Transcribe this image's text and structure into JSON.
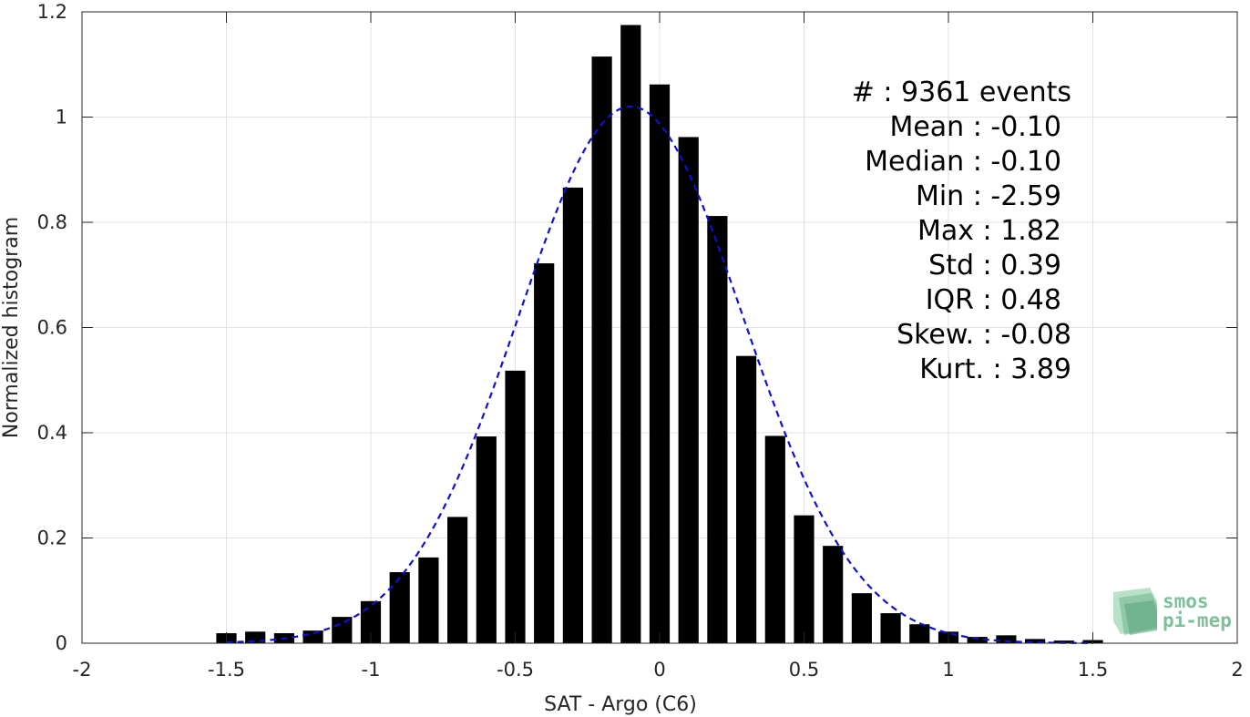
{
  "chart_data": {
    "type": "bar",
    "xlabel": "SAT - Argo (C6)",
    "ylabel": "Normalized histogram",
    "xlim": [
      -2,
      2
    ],
    "ylim": [
      0,
      1.2
    ],
    "xticks": [
      "-2",
      "-1.5",
      "-1",
      "-0.5",
      "0",
      "0.5",
      "1",
      "1.5",
      "2"
    ],
    "yticks": [
      "0",
      "0.2",
      "0.4",
      "0.6",
      "0.8",
      "1",
      "1.2"
    ],
    "grid": true,
    "bar_color": "#000000",
    "bins": [
      {
        "x": -1.5,
        "y": 0.019
      },
      {
        "x": -1.4,
        "y": 0.022
      },
      {
        "x": -1.3,
        "y": 0.019
      },
      {
        "x": -1.2,
        "y": 0.024
      },
      {
        "x": -1.1,
        "y": 0.05
      },
      {
        "x": -1.0,
        "y": 0.08
      },
      {
        "x": -0.9,
        "y": 0.135
      },
      {
        "x": -0.8,
        "y": 0.163
      },
      {
        "x": -0.7,
        "y": 0.24
      },
      {
        "x": -0.6,
        "y": 0.393
      },
      {
        "x": -0.5,
        "y": 0.518
      },
      {
        "x": -0.4,
        "y": 0.722
      },
      {
        "x": -0.3,
        "y": 0.866
      },
      {
        "x": -0.2,
        "y": 1.115
      },
      {
        "x": -0.1,
        "y": 1.175
      },
      {
        "x": 0.0,
        "y": 1.062
      },
      {
        "x": 0.1,
        "y": 0.962
      },
      {
        "x": 0.2,
        "y": 0.812
      },
      {
        "x": 0.3,
        "y": 0.546
      },
      {
        "x": 0.4,
        "y": 0.394
      },
      {
        "x": 0.5,
        "y": 0.243
      },
      {
        "x": 0.6,
        "y": 0.185
      },
      {
        "x": 0.7,
        "y": 0.095
      },
      {
        "x": 0.8,
        "y": 0.057
      },
      {
        "x": 0.9,
        "y": 0.036
      },
      {
        "x": 1.0,
        "y": 0.022
      },
      {
        "x": 1.1,
        "y": 0.012
      },
      {
        "x": 1.2,
        "y": 0.015
      },
      {
        "x": 1.3,
        "y": 0.008
      },
      {
        "x": 1.4,
        "y": 0.005
      },
      {
        "x": 1.5,
        "y": 0.006
      }
    ],
    "fit": {
      "type": "gaussian",
      "mean": -0.1,
      "peak": 1.02,
      "std": 0.39,
      "x_range": [
        -1.5,
        1.5
      ],
      "color": "#1010d0",
      "style": "dashed"
    },
    "stats": [
      {
        "label": "#  ",
        "value": ": 9361 events"
      },
      {
        "label": "Mean",
        "value": ": -0.10"
      },
      {
        "label": "Median",
        "value": ": -0.10"
      },
      {
        "label": "Min",
        "value": ": -2.59"
      },
      {
        "label": "Max",
        "value": ": 1.82"
      },
      {
        "label": "Std",
        "value": ": 0.39"
      },
      {
        "label": "IQR",
        "value": ": 0.48"
      },
      {
        "label": "Skew.",
        "value": ": -0.08"
      },
      {
        "label": "Kurt.",
        "value": ": 3.89"
      }
    ]
  },
  "logo": {
    "line1": "smos",
    "line2": "pi-mep",
    "color": "#7fbf9a"
  }
}
